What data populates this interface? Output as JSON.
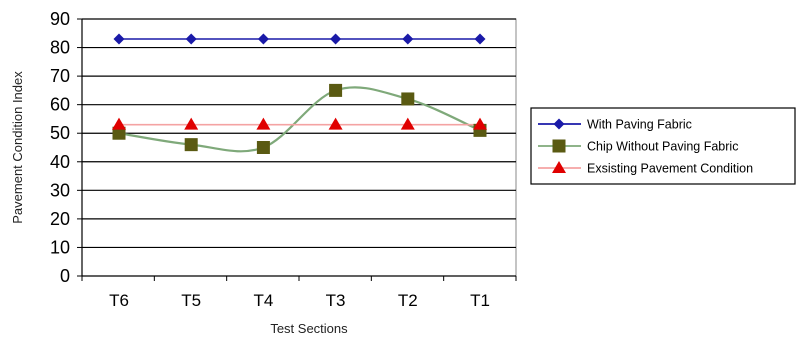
{
  "chart_data": {
    "type": "line",
    "title": "",
    "xlabel": "Test Sections",
    "ylabel": "Pavement Condition Index",
    "categories": [
      "T6",
      "T5",
      "T4",
      "T3",
      "T2",
      "T1"
    ],
    "ylim": [
      0,
      90
    ],
    "yticks": [
      0,
      10,
      20,
      30,
      40,
      50,
      60,
      70,
      80,
      90
    ],
    "grid": "horizontal",
    "legend_position": "right",
    "series": [
      {
        "name": "With Paving Fabric",
        "values": [
          83,
          83,
          83,
          83,
          83,
          83
        ],
        "color": "#1a1aa8",
        "marker": "diamond",
        "smooth": false
      },
      {
        "name": "Chip Without Paving Fabric",
        "values": [
          50,
          46,
          45,
          65,
          62,
          51
        ],
        "color": "#7fa97a",
        "marker_color": "#5a5a12",
        "marker": "square",
        "smooth": true
      },
      {
        "name": "Exsisting Pavement Condition",
        "values": [
          53,
          53,
          53,
          53,
          53,
          53
        ],
        "color": "#f4a3a3",
        "marker_color": "#e00000",
        "marker": "triangle",
        "smooth": false
      }
    ]
  }
}
